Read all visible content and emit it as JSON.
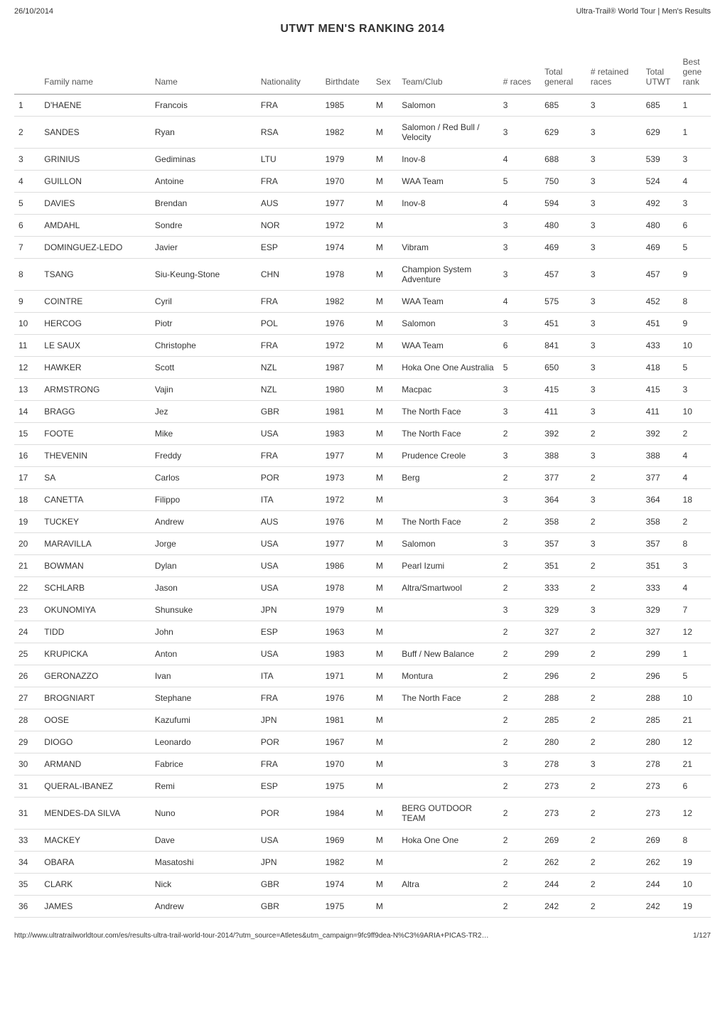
{
  "meta": {
    "date": "26/10/2014",
    "sourceTitle": "Ultra-Trail® World Tour | Men's Results",
    "pageTitle": "UTWT MEN'S RANKING 2014",
    "footerUrl": "http://www.ultratrailworldtour.com/es/results-ultra-trail-world-tour-2014/?utm_source=Atletes&utm_campaign=9fc9ff9dea-N%C3%9ARIA+PICAS-TR2…",
    "footerPage": "1/127"
  },
  "columns": [
    "",
    "Family name",
    "Name",
    "Nationality",
    "Birthdate",
    "Sex",
    "Team/Club",
    "# races",
    "Total general",
    "# retained races",
    "Total UTWT",
    "Best gene rank"
  ],
  "rows": [
    [
      "1",
      "D'HAENE",
      "Francois",
      "FRA",
      "1985",
      "M",
      "Salomon",
      "3",
      "685",
      "3",
      "685",
      "1"
    ],
    [
      "2",
      "SANDES",
      "Ryan",
      "RSA",
      "1982",
      "M",
      "Salomon / Red Bull / Velocity",
      "3",
      "629",
      "3",
      "629",
      "1"
    ],
    [
      "3",
      "GRINIUS",
      "Gediminas",
      "LTU",
      "1979",
      "M",
      "Inov-8",
      "4",
      "688",
      "3",
      "539",
      "3"
    ],
    [
      "4",
      "GUILLON",
      "Antoine",
      "FRA",
      "1970",
      "M",
      "WAA Team",
      "5",
      "750",
      "3",
      "524",
      "4"
    ],
    [
      "5",
      "DAVIES",
      "Brendan",
      "AUS",
      "1977",
      "M",
      "Inov-8",
      "4",
      "594",
      "3",
      "492",
      "3"
    ],
    [
      "6",
      "AMDAHL",
      "Sondre",
      "NOR",
      "1972",
      "M",
      "",
      "3",
      "480",
      "3",
      "480",
      "6"
    ],
    [
      "7",
      "DOMINGUEZ-LEDO",
      "Javier",
      "ESP",
      "1974",
      "M",
      "Vibram",
      "3",
      "469",
      "3",
      "469",
      "5"
    ],
    [
      "8",
      "TSANG",
      "Siu-Keung-Stone",
      "CHN",
      "1978",
      "M",
      "Champion System Adventure",
      "3",
      "457",
      "3",
      "457",
      "9"
    ],
    [
      "9",
      "COINTRE",
      "Cyril",
      "FRA",
      "1982",
      "M",
      "WAA Team",
      "4",
      "575",
      "3",
      "452",
      "8"
    ],
    [
      "10",
      "HERCOG",
      "Piotr",
      "POL",
      "1976",
      "M",
      "Salomon",
      "3",
      "451",
      "3",
      "451",
      "9"
    ],
    [
      "11",
      "LE SAUX",
      "Christophe",
      "FRA",
      "1972",
      "M",
      "WAA Team",
      "6",
      "841",
      "3",
      "433",
      "10"
    ],
    [
      "12",
      "HAWKER",
      "Scott",
      "NZL",
      "1987",
      "M",
      "Hoka One One Australia",
      "5",
      "650",
      "3",
      "418",
      "5"
    ],
    [
      "13",
      "ARMSTRONG",
      "Vajin",
      "NZL",
      "1980",
      "M",
      "Macpac",
      "3",
      "415",
      "3",
      "415",
      "3"
    ],
    [
      "14",
      "BRAGG",
      "Jez",
      "GBR",
      "1981",
      "M",
      "The North Face",
      "3",
      "411",
      "3",
      "411",
      "10"
    ],
    [
      "15",
      "FOOTE",
      "Mike",
      "USA",
      "1983",
      "M",
      "The North Face",
      "2",
      "392",
      "2",
      "392",
      "2"
    ],
    [
      "16",
      "THEVENIN",
      "Freddy",
      "FRA",
      "1977",
      "M",
      "Prudence Creole",
      "3",
      "388",
      "3",
      "388",
      "4"
    ],
    [
      "17",
      "SA",
      "Carlos",
      "POR",
      "1973",
      "M",
      "Berg",
      "2",
      "377",
      "2",
      "377",
      "4"
    ],
    [
      "18",
      "CANETTA",
      "Filippo",
      "ITA",
      "1972",
      "M",
      "",
      "3",
      "364",
      "3",
      "364",
      "18"
    ],
    [
      "19",
      "TUCKEY",
      "Andrew",
      "AUS",
      "1976",
      "M",
      "The North Face",
      "2",
      "358",
      "2",
      "358",
      "2"
    ],
    [
      "20",
      "MARAVILLA",
      "Jorge",
      "USA",
      "1977",
      "M",
      "Salomon",
      "3",
      "357",
      "3",
      "357",
      "8"
    ],
    [
      "21",
      "BOWMAN",
      "Dylan",
      "USA",
      "1986",
      "M",
      "Pearl Izumi",
      "2",
      "351",
      "2",
      "351",
      "3"
    ],
    [
      "22",
      "SCHLARB",
      "Jason",
      "USA",
      "1978",
      "M",
      "Altra/Smartwool",
      "2",
      "333",
      "2",
      "333",
      "4"
    ],
    [
      "23",
      "OKUNOMIYA",
      "Shunsuke",
      "JPN",
      "1979",
      "M",
      "",
      "3",
      "329",
      "3",
      "329",
      "7"
    ],
    [
      "24",
      "TIDD",
      "John",
      "ESP",
      "1963",
      "M",
      "",
      "2",
      "327",
      "2",
      "327",
      "12"
    ],
    [
      "25",
      "KRUPICKA",
      "Anton",
      "USA",
      "1983",
      "M",
      "Buff / New Balance",
      "2",
      "299",
      "2",
      "299",
      "1"
    ],
    [
      "26",
      "GERONAZZO",
      "Ivan",
      "ITA",
      "1971",
      "M",
      "Montura",
      "2",
      "296",
      "2",
      "296",
      "5"
    ],
    [
      "27",
      "BROGNIART",
      "Stephane",
      "FRA",
      "1976",
      "M",
      "The North Face",
      "2",
      "288",
      "2",
      "288",
      "10"
    ],
    [
      "28",
      "OOSE",
      "Kazufumi",
      "JPN",
      "1981",
      "M",
      "",
      "2",
      "285",
      "2",
      "285",
      "21"
    ],
    [
      "29",
      "DIOGO",
      "Leonardo",
      "POR",
      "1967",
      "M",
      "",
      "2",
      "280",
      "2",
      "280",
      "12"
    ],
    [
      "30",
      "ARMAND",
      "Fabrice",
      "FRA",
      "1970",
      "M",
      "",
      "3",
      "278",
      "3",
      "278",
      "21"
    ],
    [
      "31",
      "QUERAL-IBANEZ",
      "Remi",
      "ESP",
      "1975",
      "M",
      "",
      "2",
      "273",
      "2",
      "273",
      "6"
    ],
    [
      "31",
      "MENDES-DA SILVA",
      "Nuno",
      "POR",
      "1984",
      "M",
      "BERG OUTDOOR TEAM",
      "2",
      "273",
      "2",
      "273",
      "12"
    ],
    [
      "33",
      "MACKEY",
      "Dave",
      "USA",
      "1969",
      "M",
      "Hoka One One",
      "2",
      "269",
      "2",
      "269",
      "8"
    ],
    [
      "34",
      "OBARA",
      "Masatoshi",
      "JPN",
      "1982",
      "M",
      "",
      "2",
      "262",
      "2",
      "262",
      "19"
    ],
    [
      "35",
      "CLARK",
      "Nick",
      "GBR",
      "1974",
      "M",
      "Altra",
      "2",
      "244",
      "2",
      "244",
      "10"
    ],
    [
      "36",
      "JAMES",
      "Andrew",
      "GBR",
      "1975",
      "M",
      "",
      "2",
      "242",
      "2",
      "242",
      "19"
    ]
  ]
}
